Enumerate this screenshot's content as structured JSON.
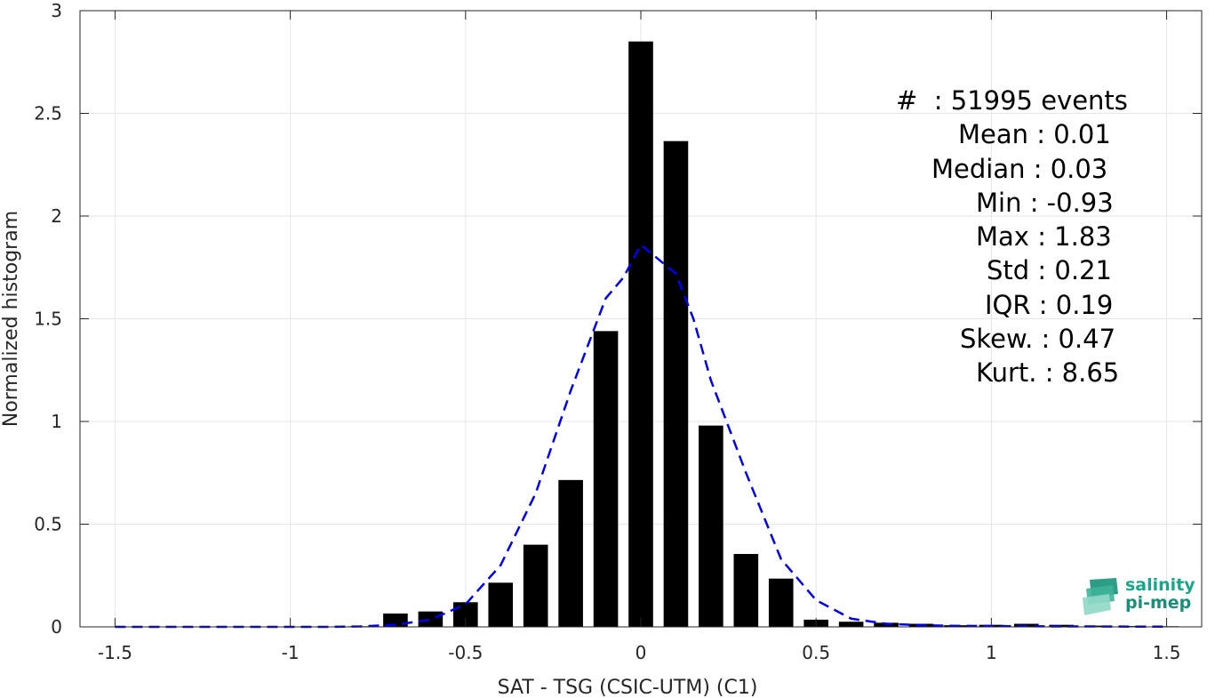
{
  "chart_data": {
    "type": "bar",
    "xlabel": "SAT - TSG (CSIC-UTM) (C1)",
    "ylabel": "Normalized histogram",
    "xlim": [
      -1.6,
      1.6
    ],
    "ylim": [
      0,
      3
    ],
    "xticks": [
      "-1.5",
      "-1",
      "-0.5",
      "0",
      "0.5",
      "1",
      "1.5"
    ],
    "yticks": [
      "0",
      "0.5",
      "1",
      "1.5",
      "2",
      "2.5",
      "3"
    ],
    "grid": true,
    "bar_color": "#000000",
    "curve_color": "#0000ee",
    "bars": {
      "x": [
        -1.5,
        -1.4,
        -1.3,
        -1.2,
        -1.1,
        -1.0,
        -0.9,
        -0.8,
        -0.7,
        -0.6,
        -0.5,
        -0.4,
        -0.3,
        -0.2,
        -0.1,
        0.0,
        0.1,
        0.2,
        0.3,
        0.4,
        0.5,
        0.6,
        0.7,
        0.8,
        0.9,
        1.0,
        1.1,
        1.2,
        1.3,
        1.4,
        1.5
      ],
      "values": [
        0,
        0,
        0,
        0,
        0,
        0,
        0,
        0.003,
        0.065,
        0.075,
        0.12,
        0.215,
        0.4,
        0.715,
        1.44,
        2.85,
        2.365,
        0.98,
        0.355,
        0.235,
        0.035,
        0.025,
        0.02,
        0.015,
        0.008,
        0.01,
        0.015,
        0.01,
        0.006,
        0.004,
        0.003
      ]
    },
    "curve": {
      "x": [
        -1.5,
        -1.4,
        -1.3,
        -1.2,
        -1.1,
        -1.0,
        -0.9,
        -0.8,
        -0.7,
        -0.6,
        -0.5,
        -0.4,
        -0.3,
        -0.2,
        -0.1,
        -0.05,
        0.0,
        0.1,
        0.15,
        0.2,
        0.3,
        0.4,
        0.5,
        0.6,
        0.7,
        0.8,
        0.9,
        1.0,
        1.1,
        1.2,
        1.3,
        1.4,
        1.5
      ],
      "values": [
        0,
        0,
        0,
        0,
        0,
        0,
        0,
        0.002,
        0.01,
        0.035,
        0.11,
        0.3,
        0.65,
        1.15,
        1.6,
        1.7,
        1.86,
        1.72,
        1.5,
        1.2,
        0.75,
        0.33,
        0.13,
        0.04,
        0.015,
        0.008,
        0.005,
        0.004,
        0.003,
        0.002,
        0.002,
        0.001,
        0.001
      ]
    }
  },
  "stats": [
    {
      "key": "#  ",
      "value": ": 51995 events",
      "keycol": 48
    },
    {
      "key": "Mean ",
      "value": ": 0.01",
      "keycol": 118
    },
    {
      "key": "Median ",
      "value": ": 0.03",
      "keycol": 88
    },
    {
      "key": "Min ",
      "value": ": -0.93",
      "keycol": 138
    },
    {
      "key": "Max ",
      "value": ": 1.83",
      "keycol": 138
    },
    {
      "key": "Std ",
      "value": ": 0.21",
      "keycol": 150
    },
    {
      "key": "IQR ",
      "value": ": 0.19",
      "keycol": 148
    },
    {
      "key": "Skew. ",
      "value": ": 0.47",
      "keycol": 120
    },
    {
      "key": "Kurt. ",
      "value": ": 8.65",
      "keycol": 138
    }
  ],
  "logo": {
    "line1": "salinity",
    "line2": "pi-mep"
  }
}
